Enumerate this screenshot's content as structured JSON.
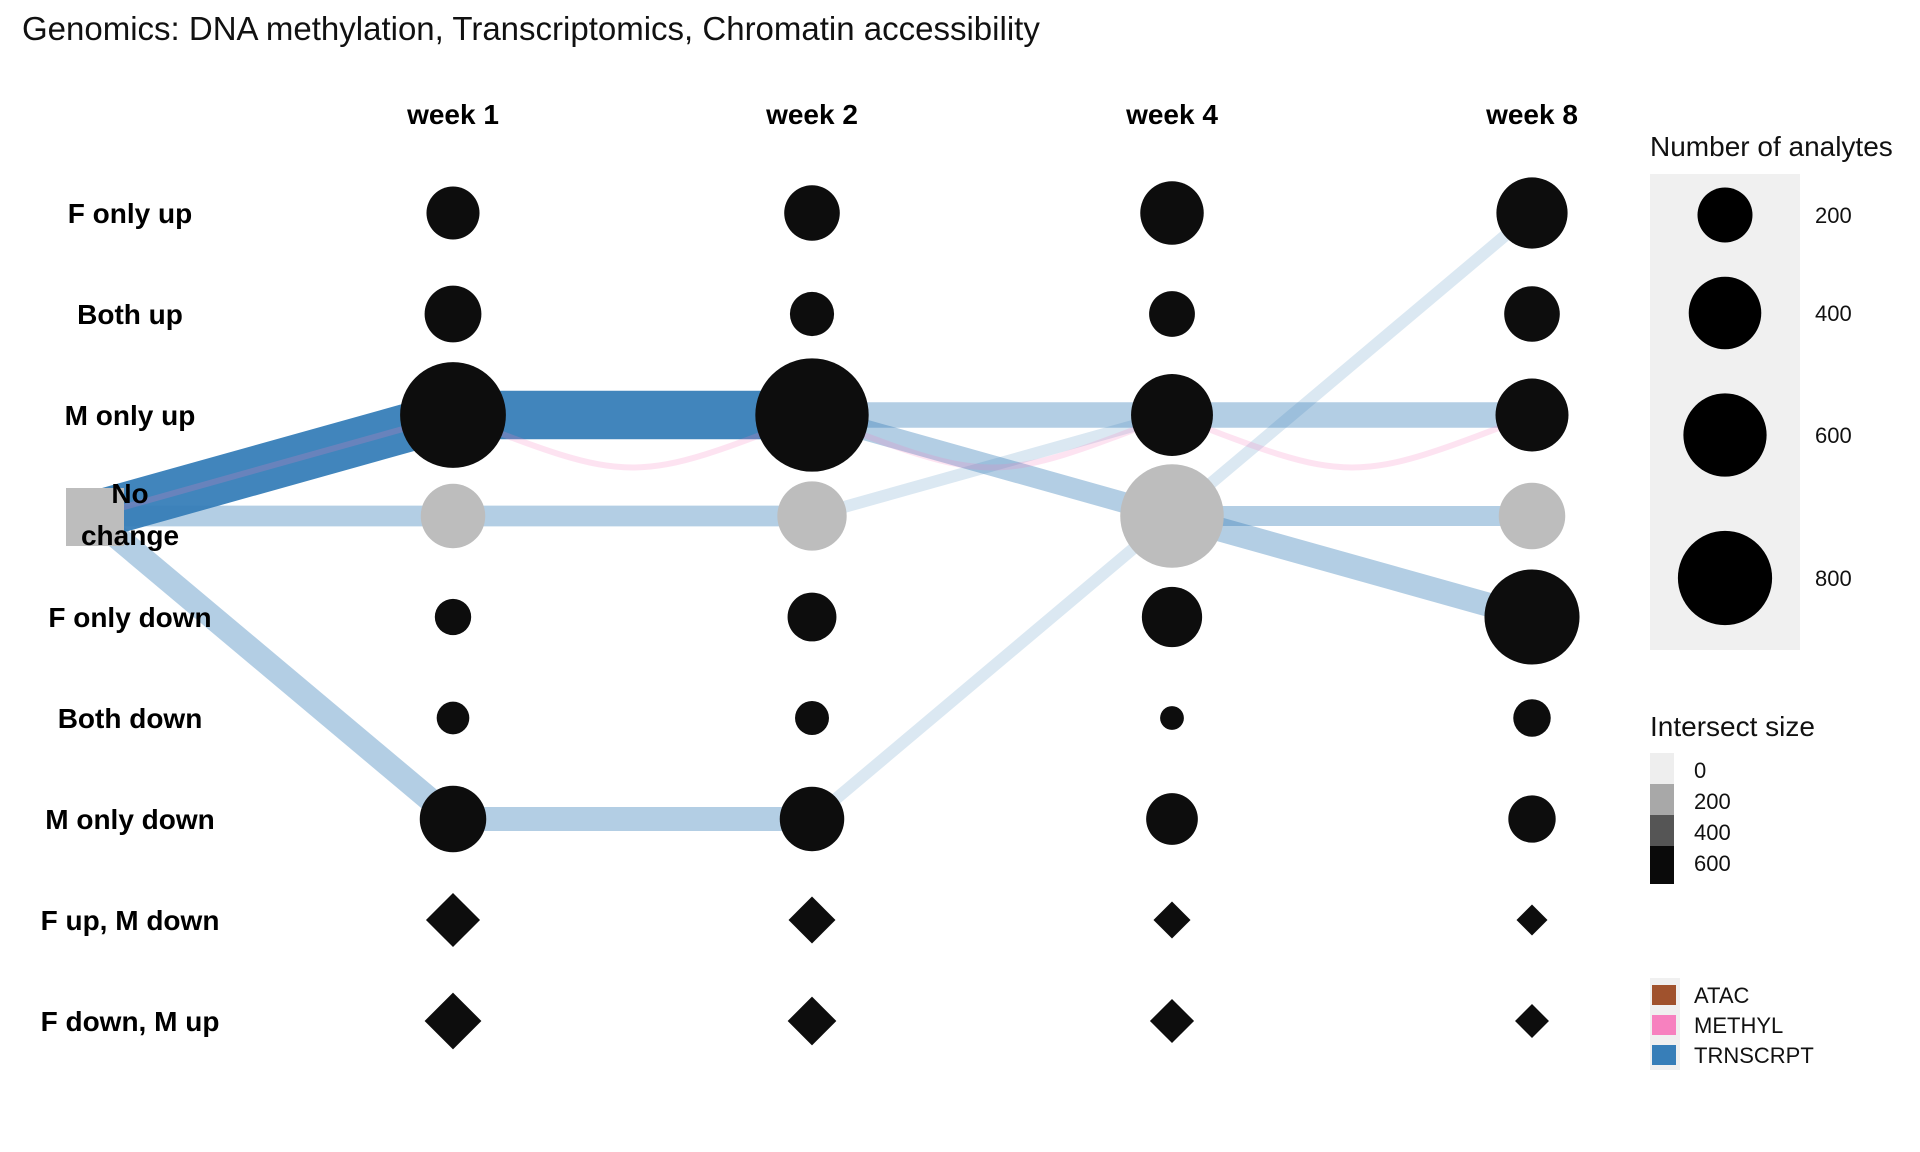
{
  "chart_data": {
    "type": "alluvial-dot",
    "title": "Genomics: DNA methylation, Transcriptomics, Chromatin accessibility",
    "columns": [
      "week 1",
      "week 2",
      "week 4",
      "week 8"
    ],
    "rows": [
      "F only up",
      "Both up",
      "M only up",
      "No change",
      "F only down",
      "Both down",
      "M only down",
      "F up, M down",
      "F down, M up"
    ],
    "diamond_rows": [
      "F up, M down",
      "F down, M up"
    ],
    "no_change_row": "No change",
    "counts": {
      "F only up": [
        150,
        170,
        240,
        320
      ],
      "Both up": [
        180,
        90,
        100,
        170
      ],
      "M only up": [
        820,
        960,
        450,
        340
      ],
      "No change": [
        250,
        300,
        780,
        270
      ],
      "F only down": [
        50,
        120,
        210,
        640
      ],
      "Both down": [
        35,
        40,
        10,
        55
      ],
      "M only down": [
        270,
        250,
        140,
        110
      ],
      "F up, M down": [
        240,
        150,
        60,
        25
      ],
      "F down, M up": [
        280,
        170,
        120,
        40
      ]
    },
    "flows": [
      {
        "series": "TRNSCRPT",
        "from": [
          0,
          "No change"
        ],
        "to": [
          1,
          "M only up"
        ],
        "value": 650
      },
      {
        "series": "TRNSCRPT",
        "from": [
          1,
          "M only up"
        ],
        "to": [
          2,
          "M only up"
        ],
        "value": 650
      },
      {
        "series": "TRNSCRPT",
        "from": [
          0,
          "No change"
        ],
        "to": [
          1,
          "No change"
        ],
        "value": 120
      },
      {
        "series": "TRNSCRPT",
        "from": [
          1,
          "No change"
        ],
        "to": [
          2,
          "No change"
        ],
        "value": 120
      },
      {
        "series": "TRNSCRPT",
        "from": [
          0,
          "No change"
        ],
        "to": [
          1,
          "M only down"
        ],
        "value": 160
      },
      {
        "series": "TRNSCRPT",
        "from": [
          1,
          "M only down"
        ],
        "to": [
          2,
          "M only down"
        ],
        "value": 160
      },
      {
        "series": "TRNSCRPT",
        "from": [
          2,
          "M only up"
        ],
        "to": [
          3,
          "M only up"
        ],
        "value": 180
      },
      {
        "series": "TRNSCRPT",
        "from": [
          3,
          "M only up"
        ],
        "to": [
          4,
          "M only up"
        ],
        "value": 180
      },
      {
        "series": "TRNSCRPT",
        "from": [
          2,
          "M only up"
        ],
        "to": [
          3,
          "No change"
        ],
        "value": 120
      },
      {
        "series": "TRNSCRPT",
        "from": [
          3,
          "No change"
        ],
        "to": [
          4,
          "F only down"
        ],
        "value": 160
      },
      {
        "series": "TRNSCRPT",
        "from": [
          3,
          "No change"
        ],
        "to": [
          4,
          "No change"
        ],
        "value": 110
      },
      {
        "series": "TRNSCRPT",
        "from": [
          2,
          "No change"
        ],
        "to": [
          3,
          "M only up"
        ],
        "value": 40
      },
      {
        "series": "TRNSCRPT",
        "from": [
          2,
          "M only down"
        ],
        "to": [
          3,
          "No change"
        ],
        "value": 40
      },
      {
        "series": "TRNSCRPT",
        "from": [
          3,
          "No change"
        ],
        "to": [
          4,
          "F only up"
        ],
        "value": 40
      },
      {
        "series": "METHYL",
        "from": [
          0,
          "No change"
        ],
        "to": [
          1,
          "M only up"
        ],
        "value": 20
      },
      {
        "series": "METHYL",
        "from": [
          1,
          "M only up"
        ],
        "to": [
          2,
          "M only up"
        ],
        "value": 20
      },
      {
        "series": "METHYL",
        "from": [
          2,
          "M only up"
        ],
        "to": [
          3,
          "M only up"
        ],
        "value": 20
      },
      {
        "series": "METHYL",
        "from": [
          3,
          "M only up"
        ],
        "to": [
          4,
          "M only up"
        ],
        "value": 20
      }
    ],
    "size_legend": {
      "title": "Number of analytes",
      "values": [
        200,
        400,
        600,
        800
      ]
    },
    "intersect_legend": {
      "title": "Intersect size",
      "values": [
        0,
        200,
        400,
        600
      ],
      "colors": [
        "#eeeeee",
        "#a8a8a8",
        "#555555",
        "#0a0a0a"
      ]
    },
    "series_legend": [
      {
        "name": "ATAC",
        "color": "#a0522d"
      },
      {
        "name": "METHYL",
        "color": "#f781bf"
      },
      {
        "name": "TRNSCRPT",
        "color": "#377eb8"
      }
    ],
    "colors": {
      "dot": "#0d0d0d",
      "no_change_dot": "#bdbdbd",
      "start_node": "#bdbdbd",
      "legend_bg": "#f0f0f0"
    }
  }
}
